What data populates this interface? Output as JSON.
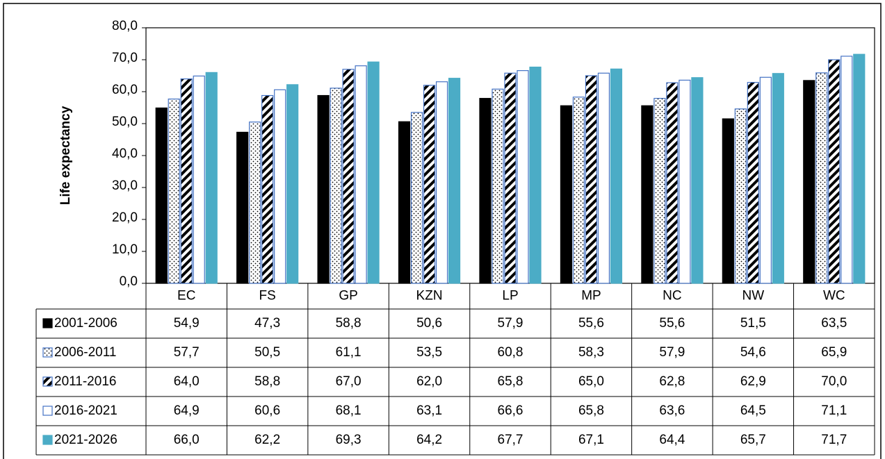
{
  "chart_data": {
    "type": "bar",
    "y_label": "Life expectancy",
    "categories": [
      "EC",
      "FS",
      "GP",
      "KZN",
      "LP",
      "MP",
      "NC",
      "NW",
      "WC"
    ],
    "ylim": [
      0,
      80
    ],
    "yticks": [
      {
        "value": 0,
        "label": "0,0"
      },
      {
        "value": 10,
        "label": "10,0"
      },
      {
        "value": 20,
        "label": "20,0"
      },
      {
        "value": 30,
        "label": "30,0"
      },
      {
        "value": 40,
        "label": "40,0"
      },
      {
        "value": 50,
        "label": "50,0"
      },
      {
        "value": 60,
        "label": "60,0"
      },
      {
        "value": 70,
        "label": "70,0"
      },
      {
        "value": 80,
        "label": "80,0"
      }
    ],
    "grid": false,
    "series": [
      {
        "name": "2001-2006",
        "color": "#000000",
        "pattern": "solid",
        "values": [
          54.9,
          47.3,
          58.8,
          50.6,
          57.9,
          55.6,
          55.6,
          51.5,
          63.5
        ],
        "value_labels": [
          "54,9",
          "47,3",
          "58,8",
          "50,6",
          "57,9",
          "55,6",
          "55,6",
          "51,5",
          "63,5"
        ]
      },
      {
        "name": "2006-2011",
        "color": "#4472c4",
        "pattern": "dots",
        "values": [
          57.7,
          50.5,
          61.1,
          53.5,
          60.8,
          58.3,
          57.9,
          54.6,
          65.9
        ],
        "value_labels": [
          "57,7",
          "50,5",
          "61,1",
          "53,5",
          "60,8",
          "58,3",
          "57,9",
          "54,6",
          "65,9"
        ]
      },
      {
        "name": "2011-2016",
        "color": "#4472c4",
        "pattern": "stripes",
        "values": [
          64.0,
          58.8,
          67.0,
          62.0,
          65.8,
          65.0,
          62.8,
          62.9,
          70.0
        ],
        "value_labels": [
          "64,0",
          "58,8",
          "67,0",
          "62,0",
          "65,8",
          "65,0",
          "62,8",
          "62,9",
          "70,0"
        ]
      },
      {
        "name": "2016-2021",
        "color": "#4472c4",
        "pattern": "none",
        "values": [
          64.9,
          60.6,
          68.1,
          63.1,
          66.6,
          65.8,
          63.6,
          64.5,
          71.1
        ],
        "value_labels": [
          "64,9",
          "60,6",
          "68,1",
          "63,1",
          "66,6",
          "65,8",
          "63,6",
          "64,5",
          "71,1"
        ]
      },
      {
        "name": "2021-2026",
        "color": "#4bacc6",
        "pattern": "solid",
        "values": [
          66.0,
          62.2,
          69.3,
          64.2,
          67.7,
          67.1,
          64.4,
          65.7,
          71.7
        ],
        "value_labels": [
          "66,0",
          "62,2",
          "69,3",
          "64,2",
          "67,7",
          "67,1",
          "64,4",
          "65,7",
          "71,7"
        ]
      }
    ]
  }
}
